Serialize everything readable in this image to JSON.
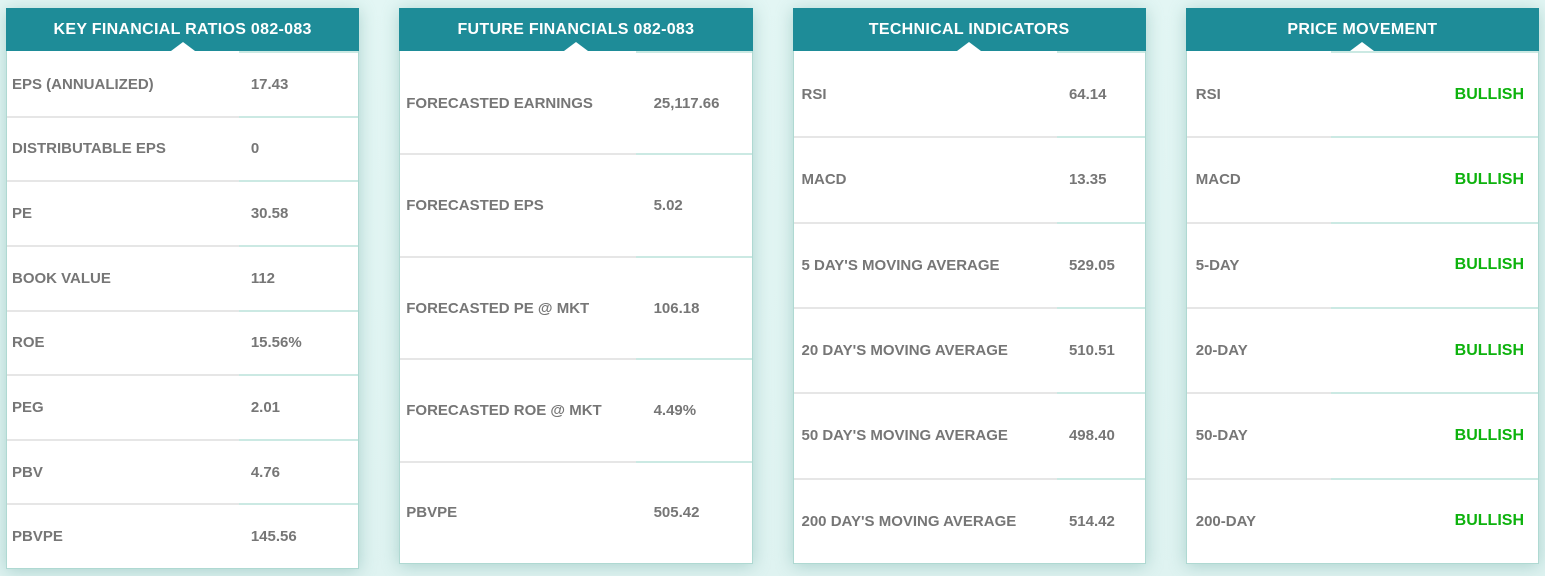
{
  "colors": {
    "header_teal": "#1e8c98",
    "background_cyan": "#dff3f1",
    "panel_border": "#afd9d2",
    "label_gray": "#767676",
    "bullish_green": "#0db20d"
  },
  "panels": [
    {
      "title": "KEY FINANCIAL RATIOS 082-083",
      "rows": [
        {
          "label": "EPS (ANNUALIZED)",
          "value": "17.43"
        },
        {
          "label": "DISTRIBUTABLE EPS",
          "value": "0"
        },
        {
          "label": "PE",
          "value": "30.58"
        },
        {
          "label": "BOOK VALUE",
          "value": "112"
        },
        {
          "label": "ROE",
          "value": "15.56%"
        },
        {
          "label": "PEG",
          "value": "2.01"
        },
        {
          "label": "PBV",
          "value": "4.76"
        },
        {
          "label": "PBVPE",
          "value": "145.56"
        }
      ]
    },
    {
      "title": "FUTURE FINANCIALS 082-083",
      "rows": [
        {
          "label": "FORECASTED EARNINGS",
          "value": "25,117.66"
        },
        {
          "label": "FORECASTED EPS",
          "value": "5.02"
        },
        {
          "label": "FORECASTED PE @ MKT",
          "value": "106.18"
        },
        {
          "label": "FORECASTED ROE @ MKT",
          "value": "4.49%"
        },
        {
          "label": "PBVPE",
          "value": "505.42"
        }
      ]
    },
    {
      "title": "TECHNICAL INDICATORS",
      "rows": [
        {
          "label": "RSI",
          "value": "64.14"
        },
        {
          "label": "MACD",
          "value": "13.35"
        },
        {
          "label": "5 DAY'S MOVING AVERAGE",
          "value": "529.05"
        },
        {
          "label": "20 DAY'S MOVING AVERAGE",
          "value": "510.51"
        },
        {
          "label": "50 DAY'S MOVING AVERAGE",
          "value": "498.40"
        },
        {
          "label": "200 DAY'S MOVING AVERAGE",
          "value": "514.42"
        }
      ]
    },
    {
      "title": "PRICE MOVEMENT",
      "rows": [
        {
          "label": "RSI",
          "value": "BULLISH"
        },
        {
          "label": "MACD",
          "value": "BULLISH"
        },
        {
          "label": "5-DAY",
          "value": "BULLISH"
        },
        {
          "label": "20-DAY",
          "value": "BULLISH"
        },
        {
          "label": "50-DAY",
          "value": "BULLISH"
        },
        {
          "label": "200-DAY",
          "value": "BULLISH"
        }
      ]
    }
  ]
}
